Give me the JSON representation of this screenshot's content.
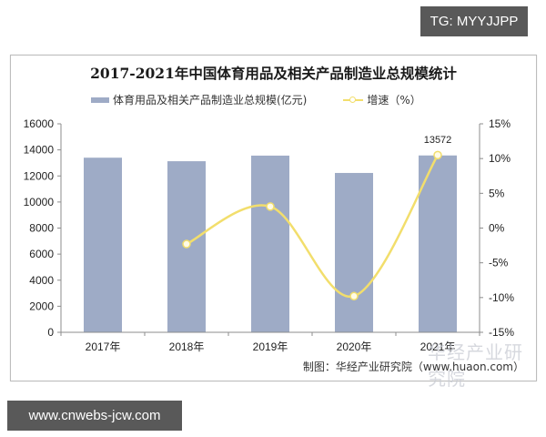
{
  "badges": {
    "top_right": "TG: MYYJJPP",
    "bottom_left": "www.cnwebs-jcw.com"
  },
  "chart_data": {
    "type": "bar+line",
    "title": "2017-2021年中国体育用品及相关产品制造业总规模统计",
    "categories": [
      "2017年",
      "2018年",
      "2019年",
      "2020年",
      "2021年"
    ],
    "series": [
      {
        "name": "体育用品及相关产品制造业总规模(亿元)",
        "type": "bar",
        "axis": "left",
        "color": "#9eabc6",
        "values": [
          13400,
          13130,
          13560,
          12230,
          13572
        ]
      },
      {
        "name": "增速（%）",
        "type": "line",
        "axis": "right",
        "color": "#f2de6c",
        "values": [
          null,
          -2.3,
          3.1,
          -9.8,
          10.5
        ]
      }
    ],
    "left_axis": {
      "ticks": [
        "0",
        "2000",
        "4000",
        "6000",
        "8000",
        "10000",
        "12000",
        "14000",
        "16000"
      ],
      "ylim": [
        0,
        16000
      ]
    },
    "right_axis": {
      "ticks": [
        "-15%",
        "-10%",
        "-5%",
        "0%",
        "5%",
        "10%",
        "15%"
      ],
      "ylim": [
        -15,
        15
      ]
    },
    "annotations": [
      {
        "category": "2021年",
        "text": "13572"
      }
    ],
    "legend_position": "top",
    "grid": false,
    "source": "制图：华经产业研究院（www.huaon.com）",
    "watermark": "华经产业研究院"
  }
}
